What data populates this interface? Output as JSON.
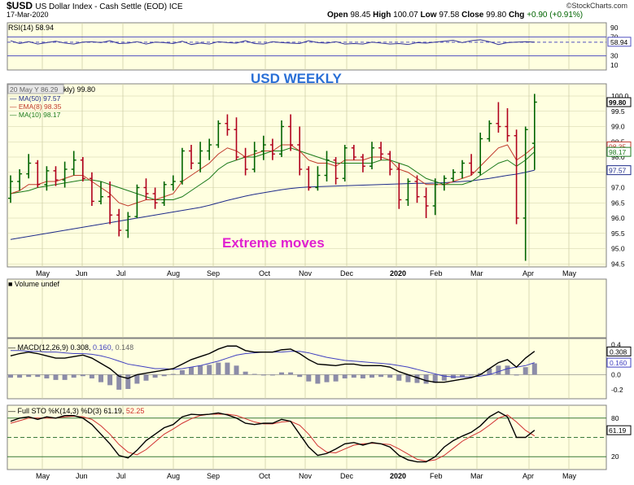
{
  "header": {
    "symbol": "$USD",
    "description": "US Dollar Index - Cash Settle (EOD) ICE",
    "date": "17-Mar-2020",
    "open_label": "Open",
    "open": "98.45",
    "high_label": "High",
    "high": "100.07",
    "low_label": "Low",
    "low": "97.58",
    "close_label": "Close",
    "close": "99.80",
    "chg_label": "Chg",
    "chg": "+0.90 (+0.91%)",
    "brand": "©StockCharts.com"
  },
  "colors": {
    "panel_bg": "#ffffe0",
    "grid": "#cfcfa8",
    "up": "#006400",
    "down": "#b0001c",
    "ma50": "#1f2c8a",
    "ema8": "#c0392b",
    "ma10": "#1b7a1b",
    "rsi": "#333399",
    "macd": "#000000",
    "signal": "#4040c0",
    "hist": "#8c8ca8",
    "annotation_blue": "#2a6fd6",
    "annotation_magenta": "#e020d0"
  },
  "x_axis": {
    "months": [
      "May",
      "Jun",
      "Jul",
      "Aug",
      "Sep",
      "Oct",
      "Nov",
      "Dec",
      "2020",
      "Feb",
      "Mar",
      "Apr",
      "May"
    ]
  },
  "rsi": {
    "label": "RSI(14) 58.94",
    "ticks": [
      "90",
      "70",
      "58.94",
      "30",
      "10"
    ],
    "values": [
      62,
      56,
      60,
      55,
      58,
      61,
      57,
      55,
      59,
      60,
      58,
      62,
      56,
      57,
      60,
      55,
      59,
      58,
      56,
      61,
      54,
      57,
      55,
      60,
      58,
      57,
      62,
      56,
      55,
      60,
      58,
      57,
      56,
      62,
      58,
      57,
      60,
      55,
      56,
      55,
      59,
      57,
      55,
      56,
      54,
      58,
      57,
      59,
      61,
      63,
      58,
      62,
      64,
      60,
      54,
      58,
      59,
      60,
      59
    ]
  },
  "price": {
    "legend_overlay": "20 May Y 86.29",
    "legend_line": "kly) 99.80",
    "ma50_label": "MA(50) 97.57",
    "ema8_label": "EMA(8) 98.35",
    "ma10_label": "MA(10) 98.17",
    "annotation_top": "USD WEEKLY",
    "annotation_mid": "Extreme moves",
    "ticks": [
      "100.0",
      "99.5",
      "99.0",
      "98.5",
      "98.0",
      "97.5",
      "97.0",
      "96.5",
      "96.0",
      "95.5",
      "95.0",
      "94.5"
    ],
    "badges": {
      "last": "99.80",
      "ema8": "98.35",
      "ma10": "98.17",
      "ma50": "97.57"
    },
    "ylim": [
      94.4,
      100.4
    ],
    "ohlc": [
      [
        96.65,
        97.4,
        96.5,
        97.2
      ],
      [
        97.2,
        97.6,
        96.9,
        97.45
      ],
      [
        97.45,
        98.1,
        97.3,
        97.8
      ],
      [
        97.8,
        97.9,
        97.0,
        97.1
      ],
      [
        97.1,
        97.7,
        96.9,
        97.55
      ],
      [
        97.55,
        97.7,
        97.05,
        97.25
      ],
      [
        97.25,
        97.85,
        97.0,
        97.6
      ],
      [
        97.6,
        98.2,
        97.4,
        97.9
      ],
      [
        97.9,
        98.0,
        97.2,
        97.3
      ],
      [
        97.3,
        97.5,
        96.4,
        96.55
      ],
      [
        96.55,
        97.2,
        96.45,
        96.7
      ],
      [
        96.7,
        97.2,
        95.8,
        96.1
      ],
      [
        96.1,
        96.3,
        95.4,
        95.6
      ],
      [
        95.6,
        96.2,
        95.35,
        96.05
      ],
      [
        96.05,
        97.1,
        96.0,
        97.0
      ],
      [
        97.0,
        97.3,
        96.6,
        96.8
      ],
      [
        96.8,
        97.0,
        96.3,
        96.5
      ],
      [
        96.5,
        97.2,
        96.4,
        97.1
      ],
      [
        97.1,
        97.4,
        96.9,
        97.2
      ],
      [
        97.2,
        98.3,
        97.1,
        98.2
      ],
      [
        98.2,
        98.4,
        97.6,
        97.8
      ],
      [
        97.8,
        98.5,
        97.5,
        98.2
      ],
      [
        98.2,
        98.6,
        97.9,
        98.4
      ],
      [
        98.4,
        99.2,
        98.3,
        99.1
      ],
      [
        99.1,
        99.4,
        98.7,
        98.9
      ],
      [
        98.9,
        99.3,
        97.9,
        98.0
      ],
      [
        98.0,
        98.3,
        97.4,
        97.6
      ],
      [
        97.6,
        98.5,
        97.5,
        98.2
      ],
      [
        98.2,
        98.7,
        97.9,
        98.4
      ],
      [
        98.4,
        98.6,
        97.9,
        98.1
      ],
      [
        98.1,
        99.2,
        98.0,
        99.0
      ],
      [
        99.0,
        99.4,
        98.2,
        98.4
      ],
      [
        98.4,
        99.0,
        97.4,
        97.6
      ],
      [
        97.6,
        97.7,
        96.9,
        97.0
      ],
      [
        97.0,
        97.7,
        96.9,
        97.4
      ],
      [
        97.4,
        98.2,
        97.2,
        97.9
      ],
      [
        97.9,
        98.0,
        97.1,
        97.3
      ],
      [
        97.3,
        98.4,
        97.2,
        98.3
      ],
      [
        98.3,
        98.4,
        97.9,
        98.0
      ],
      [
        98.0,
        98.1,
        97.5,
        97.7
      ],
      [
        97.7,
        98.5,
        97.6,
        98.3
      ],
      [
        98.3,
        98.5,
        97.9,
        98.1
      ],
      [
        98.1,
        98.2,
        97.4,
        97.6
      ],
      [
        97.6,
        97.8,
        96.3,
        96.6
      ],
      [
        96.6,
        97.3,
        96.4,
        97.2
      ],
      [
        97.2,
        97.4,
        96.5,
        96.7
      ],
      [
        96.7,
        97.0,
        96.0,
        96.4
      ],
      [
        96.4,
        97.3,
        96.1,
        97.1
      ],
      [
        97.1,
        97.4,
        96.9,
        97.3
      ],
      [
        97.3,
        97.6,
        97.2,
        97.5
      ],
      [
        97.5,
        97.9,
        97.3,
        97.8
      ],
      [
        97.8,
        98.1,
        97.4,
        97.5
      ],
      [
        97.5,
        98.8,
        97.4,
        98.6
      ],
      [
        98.6,
        99.2,
        98.5,
        99.1
      ],
      [
        99.1,
        99.8,
        98.8,
        99.0
      ],
      [
        99.0,
        99.6,
        98.5,
        98.7
      ],
      [
        98.7,
        98.9,
        95.8,
        96.0
      ],
      [
        96.0,
        99.0,
        94.6,
        98.9
      ],
      [
        98.45,
        100.07,
        97.58,
        99.8
      ]
    ],
    "ma50": [
      95.3,
      95.35,
      95.4,
      95.45,
      95.5,
      95.55,
      95.6,
      95.65,
      95.7,
      95.75,
      95.8,
      95.85,
      95.9,
      95.95,
      96.0,
      96.05,
      96.1,
      96.15,
      96.2,
      96.25,
      96.3,
      96.35,
      96.42,
      96.5,
      96.58,
      96.65,
      96.72,
      96.78,
      96.83,
      96.88,
      96.93,
      96.97,
      97.0,
      97.02,
      97.03,
      97.04,
      97.05,
      97.06,
      97.07,
      97.08,
      97.09,
      97.1,
      97.11,
      97.12,
      97.13,
      97.14,
      97.14,
      97.15,
      97.16,
      97.18,
      97.2,
      97.22,
      97.26,
      97.3,
      97.35,
      97.4,
      97.44,
      97.5,
      97.57
    ],
    "ema8": [
      96.8,
      96.9,
      97.1,
      97.1,
      97.2,
      97.2,
      97.3,
      97.4,
      97.4,
      97.2,
      97.0,
      96.8,
      96.5,
      96.4,
      96.5,
      96.6,
      96.6,
      96.7,
      96.8,
      97.2,
      97.4,
      97.6,
      97.8,
      98.1,
      98.3,
      98.2,
      98.0,
      98.1,
      98.2,
      98.2,
      98.4,
      98.4,
      98.2,
      97.9,
      97.8,
      97.8,
      97.7,
      97.9,
      97.9,
      97.9,
      98.0,
      98.0,
      97.9,
      97.6,
      97.5,
      97.3,
      97.1,
      97.1,
      97.1,
      97.2,
      97.3,
      97.4,
      97.7,
      98.0,
      98.3,
      98.4,
      97.9,
      98.1,
      98.35
    ],
    "ma10": [
      96.8,
      96.85,
      96.9,
      97.0,
      97.05,
      97.1,
      97.15,
      97.2,
      97.25,
      97.25,
      97.2,
      97.1,
      97.0,
      96.9,
      96.8,
      96.7,
      96.6,
      96.6,
      96.6,
      96.7,
      96.9,
      97.1,
      97.3,
      97.6,
      97.8,
      97.9,
      98.0,
      98.0,
      98.1,
      98.2,
      98.2,
      98.3,
      98.2,
      98.1,
      98.0,
      97.9,
      97.8,
      97.8,
      97.8,
      97.8,
      97.8,
      97.9,
      97.9,
      97.8,
      97.7,
      97.5,
      97.3,
      97.2,
      97.1,
      97.1,
      97.1,
      97.2,
      97.4,
      97.6,
      97.8,
      97.9,
      97.7,
      97.9,
      98.17
    ]
  },
  "volume": {
    "label": "Volume undef"
  },
  "macd": {
    "label_prefix": "MACD(12,26,9) ",
    "macd_val": "0.308",
    "signal_val": "0.160",
    "hist_val": "0.148",
    "ticks": [
      "0.4",
      "0.308",
      "0.160",
      "0.0",
      "-0.2"
    ],
    "ylim": [
      -0.32,
      0.48
    ],
    "macd": [
      0.25,
      0.28,
      0.3,
      0.28,
      0.25,
      0.22,
      0.22,
      0.24,
      0.26,
      0.22,
      0.15,
      0.08,
      -0.02,
      -0.05,
      0.0,
      0.02,
      0.04,
      0.06,
      0.08,
      0.14,
      0.2,
      0.24,
      0.28,
      0.34,
      0.38,
      0.38,
      0.32,
      0.3,
      0.3,
      0.3,
      0.33,
      0.34,
      0.28,
      0.2,
      0.14,
      0.13,
      0.12,
      0.14,
      0.14,
      0.12,
      0.12,
      0.12,
      0.1,
      0.04,
      0.0,
      -0.04,
      -0.08,
      -0.1,
      -0.1,
      -0.08,
      -0.06,
      -0.04,
      0.0,
      0.08,
      0.16,
      0.2,
      0.1,
      0.22,
      0.31
    ],
    "signal": [
      0.32,
      0.32,
      0.31,
      0.31,
      0.3,
      0.3,
      0.29,
      0.28,
      0.28,
      0.27,
      0.25,
      0.22,
      0.18,
      0.14,
      0.12,
      0.1,
      0.08,
      0.08,
      0.07,
      0.08,
      0.1,
      0.12,
      0.15,
      0.18,
      0.22,
      0.26,
      0.28,
      0.29,
      0.3,
      0.3,
      0.3,
      0.31,
      0.31,
      0.29,
      0.26,
      0.23,
      0.21,
      0.19,
      0.18,
      0.17,
      0.16,
      0.15,
      0.14,
      0.12,
      0.1,
      0.07,
      0.04,
      0.01,
      -0.02,
      -0.03,
      -0.03,
      -0.03,
      -0.02,
      0.0,
      0.04,
      0.08,
      0.1,
      0.12,
      0.16
    ],
    "hist": [
      -0.04,
      -0.04,
      -0.03,
      -0.03,
      -0.05,
      -0.07,
      -0.07,
      -0.04,
      -0.02,
      -0.05,
      -0.1,
      -0.14,
      -0.2,
      -0.19,
      -0.12,
      -0.08,
      -0.04,
      -0.02,
      0.01,
      0.06,
      0.1,
      0.12,
      0.13,
      0.16,
      0.16,
      0.12,
      0.04,
      0.01,
      0.0,
      0.0,
      0.03,
      0.03,
      -0.03,
      -0.09,
      -0.12,
      -0.1,
      -0.09,
      -0.05,
      -0.04,
      -0.05,
      -0.04,
      -0.03,
      -0.04,
      -0.08,
      -0.1,
      -0.11,
      -0.12,
      -0.11,
      -0.08,
      -0.05,
      -0.03,
      -0.01,
      0.02,
      0.08,
      0.12,
      0.12,
      0.0,
      0.1,
      0.15
    ]
  },
  "sto": {
    "label_prefix": "Full STO %K(14,3) %D(3) ",
    "k_val": "61.19",
    "d_val": "52.25",
    "ticks": [
      "80",
      "61.19",
      "20"
    ],
    "ylim": [
      0,
      100
    ],
    "k": [
      75,
      80,
      82,
      78,
      82,
      80,
      84,
      84,
      80,
      70,
      55,
      40,
      22,
      18,
      30,
      45,
      55,
      65,
      70,
      82,
      86,
      85,
      86,
      88,
      85,
      80,
      72,
      70,
      72,
      72,
      78,
      75,
      55,
      35,
      22,
      25,
      32,
      40,
      42,
      38,
      42,
      40,
      35,
      22,
      15,
      12,
      12,
      20,
      35,
      45,
      52,
      58,
      68,
      82,
      90,
      82,
      50,
      50,
      61.19
    ],
    "d": [
      72,
      76,
      80,
      80,
      80,
      80,
      82,
      83,
      82,
      78,
      68,
      55,
      39,
      27,
      23,
      31,
      43,
      55,
      63,
      72,
      79,
      84,
      86,
      86,
      86,
      84,
      79,
      74,
      71,
      71,
      74,
      75,
      69,
      55,
      37,
      27,
      26,
      32,
      38,
      40,
      41,
      40,
      39,
      32,
      24,
      16,
      13,
      15,
      22,
      33,
      44,
      52,
      59,
      69,
      80,
      85,
      74,
      61,
      52.25
    ]
  },
  "annotations": [
    "USD WEEKLY",
    "Extreme moves"
  ]
}
